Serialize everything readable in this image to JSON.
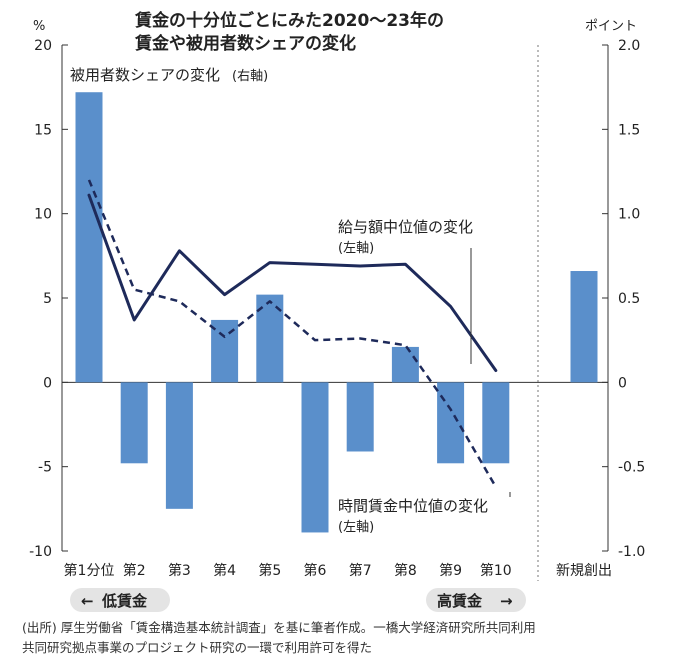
{
  "chart_data": {
    "type": "bar+line",
    "title": [
      "賃金の十分位ごとにみた2020～23年の",
      "賃金や被用者数シェアの変化"
    ],
    "y_left": {
      "unit": "%",
      "min": -10,
      "max": 20,
      "ticks": [
        "20",
        "15",
        "10",
        "5",
        "0",
        "-5",
        "-10"
      ]
    },
    "y_right": {
      "unit": "ポイント",
      "min": -1.0,
      "max": 2.0,
      "ticks": [
        "2.0",
        "1.5",
        "1.0",
        "0.5",
        "0",
        "-0.5",
        "-1.0"
      ]
    },
    "categories": [
      "第1分位",
      "第2",
      "第3",
      "第4",
      "第5",
      "第6",
      "第7",
      "第8",
      "第9",
      "第10"
    ],
    "extra_category": "新規創出",
    "series": [
      {
        "name": "被用者数シェアの変化",
        "axis_note": "(右軸)",
        "type": "bar",
        "color": "#5a8fcb",
        "values": [
          1.72,
          -0.48,
          -0.75,
          0.37,
          0.52,
          -0.89,
          -0.41,
          0.21,
          -0.48,
          -0.48
        ],
        "extra_value": 0.66
      },
      {
        "name": "給与額中位値の変化",
        "axis_note": "(左軸)",
        "type": "line",
        "color": "#1e2a5a",
        "values": [
          11.1,
          3.7,
          7.8,
          5.2,
          7.1,
          7.0,
          6.9,
          7.0,
          4.5,
          0.7
        ]
      },
      {
        "name": "時間賃金中位値の変化",
        "axis_note": "(左軸)",
        "type": "dashed-line",
        "color": "#1e2a5a",
        "values": [
          12.0,
          5.5,
          4.8,
          2.7,
          4.8,
          2.5,
          2.6,
          2.2,
          -1.6,
          -6.2
        ]
      }
    ]
  },
  "direction": {
    "low_label": "低賃金",
    "high_label": "高賃金",
    "low_arrow": "←",
    "high_arrow": "→"
  },
  "source_note": [
    "(出所) 厚生労働省「賃金構造基本統計調査」を基に筆者作成。一橋大学経済研究所共同利用",
    "共同研究拠点事業のプロジェクト研究の一環で利用許可を得た"
  ],
  "colors": {
    "bar": "#5a8fcb",
    "line": "#1e2a5a",
    "pill": "#e4e4e4",
    "axis": "#333333"
  }
}
